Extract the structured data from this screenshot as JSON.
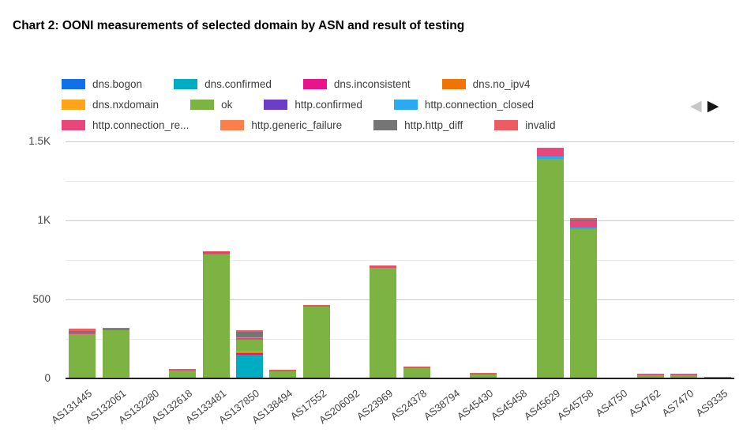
{
  "page": {
    "title": "Chart 2: OONI measurements of selected domain by ASN and result of testing"
  },
  "legend_nav": {
    "prev_icon": "◀",
    "next_icon": "▶"
  },
  "chart_data": {
    "type": "bar",
    "stacked": true,
    "title": "Chart 2: OONI measurements of selected domain by ASN and result of testing",
    "xlabel": "",
    "ylabel": "",
    "ylim": [
      0,
      1600
    ],
    "grid": true,
    "legend_position": "top",
    "yticks": [
      {
        "label": "0",
        "value": 0
      },
      {
        "label": "500",
        "value": 500
      },
      {
        "label": "1K",
        "value": 1000
      },
      {
        "label": "1.5K",
        "value": 1500
      }
    ],
    "minor_gridlines": [
      250,
      750,
      1250
    ],
    "categories": [
      "AS131445",
      "AS132061",
      "AS132280",
      "AS132618",
      "AS133481",
      "AS137850",
      "AS138494",
      "AS17552",
      "AS206092",
      "AS23969",
      "AS24378",
      "AS38794",
      "AS45430",
      "AS45458",
      "AS45629",
      "AS45758",
      "AS4750",
      "AS4762",
      "AS7470",
      "AS9335"
    ],
    "series": [
      {
        "name": "dns.bogon",
        "color": "#1170e8",
        "values": [
          0,
          0,
          0,
          0,
          0,
          0,
          0,
          0,
          0,
          0,
          0,
          0,
          0,
          0,
          0,
          0,
          0,
          0,
          0,
          0
        ]
      },
      {
        "name": "dns.confirmed",
        "color": "#00acc1",
        "values": [
          0,
          0,
          0,
          0,
          0,
          150,
          0,
          0,
          0,
          0,
          0,
          0,
          0,
          0,
          0,
          0,
          0,
          0,
          0,
          0
        ]
      },
      {
        "name": "dns.inconsistent",
        "color": "#e8148c",
        "values": [
          0,
          0,
          0,
          0,
          0,
          8,
          0,
          0,
          0,
          0,
          0,
          0,
          0,
          0,
          0,
          0,
          0,
          0,
          0,
          0
        ]
      },
      {
        "name": "dns.no_ipv4",
        "color": "#f07306",
        "values": [
          0,
          0,
          0,
          0,
          0,
          8,
          0,
          0,
          0,
          0,
          0,
          0,
          0,
          0,
          0,
          0,
          0,
          0,
          0,
          0
        ]
      },
      {
        "name": "dns.nxdomain",
        "color": "#ffa51c",
        "values": [
          0,
          10,
          0,
          0,
          0,
          6,
          0,
          0,
          0,
          0,
          0,
          0,
          0,
          0,
          0,
          0,
          0,
          0,
          0,
          0
        ]
      },
      {
        "name": "ok",
        "color": "#7cb342",
        "values": [
          280,
          295,
          3,
          54,
          785,
          73,
          45,
          455,
          0,
          700,
          65,
          0,
          28,
          0,
          1390,
          945,
          0,
          22,
          18,
          3
        ]
      },
      {
        "name": "http.confirmed",
        "color": "#6a3fc6",
        "values": [
          0,
          0,
          0,
          0,
          0,
          0,
          0,
          0,
          0,
          0,
          0,
          0,
          0,
          0,
          0,
          0,
          0,
          0,
          0,
          0
        ]
      },
      {
        "name": "http.connection_closed",
        "color": "#2ba9f1",
        "values": [
          0,
          0,
          0,
          0,
          0,
          0,
          0,
          0,
          0,
          0,
          0,
          0,
          0,
          0,
          15,
          10,
          0,
          0,
          0,
          0
        ]
      },
      {
        "name": "http.connection_re...",
        "color": "#e8477c",
        "values": [
          12,
          5,
          0,
          3,
          10,
          12,
          5,
          5,
          0,
          8,
          5,
          0,
          4,
          0,
          50,
          40,
          0,
          5,
          6,
          4
        ]
      },
      {
        "name": "http.generic_failure",
        "color": "#fc7e4d",
        "values": [
          0,
          0,
          0,
          0,
          0,
          5,
          0,
          0,
          0,
          0,
          0,
          0,
          0,
          0,
          0,
          0,
          0,
          0,
          0,
          0
        ]
      },
      {
        "name": "http.http_diff",
        "color": "#757575",
        "values": [
          8,
          5,
          0,
          0,
          5,
          35,
          3,
          0,
          0,
          0,
          0,
          0,
          0,
          0,
          0,
          10,
          0,
          0,
          0,
          0
        ]
      },
      {
        "name": "invalid",
        "color": "#ee5c63",
        "values": [
          15,
          5,
          0,
          3,
          5,
          8,
          2,
          5,
          0,
          7,
          5,
          0,
          3,
          0,
          5,
          10,
          0,
          5,
          4,
          3
        ]
      }
    ]
  }
}
